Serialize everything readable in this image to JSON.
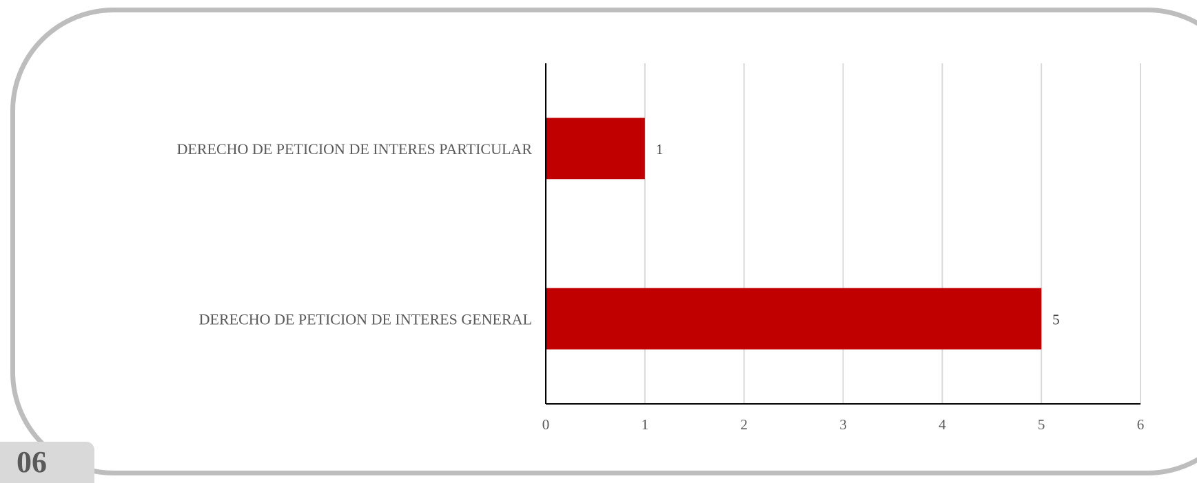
{
  "page": {
    "number": "06"
  },
  "chart_data": {
    "type": "bar",
    "orientation": "horizontal",
    "categories": [
      "DERECHO DE PETICION DE INTERES PARTICULAR",
      "DERECHO DE PETICION DE INTERES GENERAL"
    ],
    "values": [
      1,
      5
    ],
    "xlim": [
      0,
      6
    ],
    "x_ticks": [
      "0",
      "1",
      "2",
      "3",
      "4",
      "5",
      "6"
    ],
    "grid": "vertical",
    "data_labels": true,
    "bar_color": "#c00000",
    "gridline_color": "#d9d9d9",
    "axis_color": "#000000",
    "title": "",
    "xlabel": "",
    "ylabel": ""
  }
}
